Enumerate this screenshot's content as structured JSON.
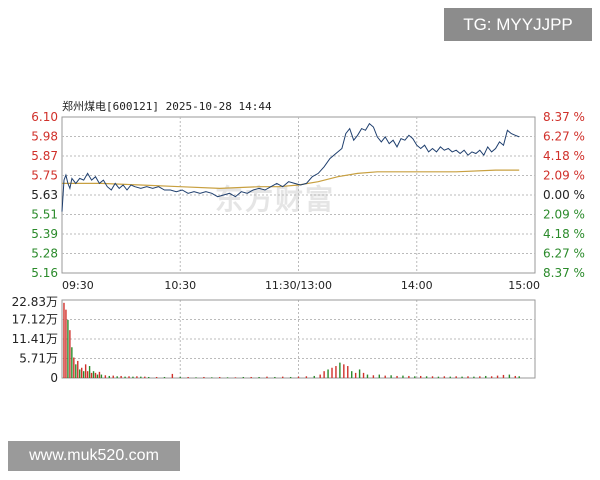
{
  "watermark_top": "TG: MYYJJPP",
  "watermark_bottom": "www.muk520.com",
  "brand_watermark": "东方财富",
  "chart_title": "郑州煤电[600121] 2025-10-28 14:44",
  "colors": {
    "price_line": "#1f3f6e",
    "avg_line": "#c8a040",
    "up": "#d0302a",
    "down": "#2a8a2a",
    "flat": "#222222",
    "grid": "#bbbbbb",
    "volume_up": "#d0302a",
    "volume_down": "#2a8a2a"
  },
  "chart_data": [
    {
      "type": "line",
      "title": "郑州煤电[600121] 2025-10-28 14:44",
      "x_ticks": [
        "09:30",
        "10:30",
        "11:30/13:00",
        "14:00",
        "15:00"
      ],
      "y_left_ticks": [
        "6.10",
        "5.98",
        "5.87",
        "5.75",
        "5.63",
        "5.51",
        "5.39",
        "5.28",
        "5.16"
      ],
      "y_right_ticks": [
        "8.37 %",
        "6.27 %",
        "4.18 %",
        "2.09 %",
        "0.00 %",
        "2.09 %",
        "4.18 %",
        "6.27 %",
        "8.37 %"
      ],
      "ylim": [
        5.16,
        6.1
      ],
      "prev_close": 5.63,
      "x_range": [
        0,
        240
      ],
      "series": [
        {
          "key": "price",
          "points": [
            [
              0,
              5.53
            ],
            [
              1,
              5.72
            ],
            [
              2,
              5.75
            ],
            [
              3,
              5.7
            ],
            [
              4,
              5.67
            ],
            [
              5,
              5.73
            ],
            [
              7,
              5.7
            ],
            [
              9,
              5.73
            ],
            [
              11,
              5.72
            ],
            [
              13,
              5.76
            ],
            [
              15,
              5.72
            ],
            [
              17,
              5.74
            ],
            [
              19,
              5.7
            ],
            [
              21,
              5.72
            ],
            [
              23,
              5.68
            ],
            [
              25,
              5.66
            ],
            [
              27,
              5.7
            ],
            [
              29,
              5.67
            ],
            [
              31,
              5.69
            ],
            [
              33,
              5.66
            ],
            [
              35,
              5.69
            ],
            [
              37,
              5.68
            ],
            [
              40,
              5.67
            ],
            [
              43,
              5.68
            ],
            [
              46,
              5.67
            ],
            [
              49,
              5.68
            ],
            [
              52,
              5.66
            ],
            [
              55,
              5.66
            ],
            [
              58,
              5.65
            ],
            [
              61,
              5.66
            ],
            [
              64,
              5.64
            ],
            [
              67,
              5.65
            ],
            [
              70,
              5.64
            ],
            [
              73,
              5.65
            ],
            [
              76,
              5.64
            ],
            [
              79,
              5.62
            ],
            [
              82,
              5.63
            ],
            [
              85,
              5.64
            ],
            [
              88,
              5.62
            ],
            [
              91,
              5.65
            ],
            [
              94,
              5.64
            ],
            [
              97,
              5.66
            ],
            [
              100,
              5.67
            ],
            [
              103,
              5.66
            ],
            [
              106,
              5.68
            ],
            [
              109,
              5.7
            ],
            [
              112,
              5.68
            ],
            [
              115,
              5.71
            ],
            [
              118,
              5.7
            ],
            [
              121,
              5.69
            ],
            [
              124,
              5.7
            ],
            [
              127,
              5.74
            ],
            [
              130,
              5.76
            ],
            [
              133,
              5.8
            ],
            [
              136,
              5.85
            ],
            [
              139,
              5.88
            ],
            [
              142,
              5.91
            ],
            [
              144,
              6.0
            ],
            [
              146,
              6.03
            ],
            [
              148,
              5.96
            ],
            [
              150,
              5.99
            ],
            [
              152,
              6.03
            ],
            [
              154,
              6.02
            ],
            [
              156,
              6.06
            ],
            [
              158,
              6.04
            ],
            [
              160,
              5.98
            ],
            [
              162,
              5.95
            ],
            [
              164,
              5.98
            ],
            [
              166,
              5.94
            ],
            [
              168,
              5.96
            ],
            [
              170,
              5.92
            ],
            [
              172,
              5.97
            ],
            [
              174,
              5.96
            ],
            [
              176,
              5.99
            ],
            [
              178,
              5.97
            ],
            [
              180,
              5.93
            ],
            [
              182,
              5.91
            ],
            [
              184,
              5.93
            ],
            [
              186,
              5.89
            ],
            [
              188,
              5.91
            ],
            [
              190,
              5.89
            ],
            [
              192,
              5.92
            ],
            [
              194,
              5.9
            ],
            [
              196,
              5.91
            ],
            [
              198,
              5.89
            ],
            [
              200,
              5.9
            ],
            [
              202,
              5.88
            ],
            [
              204,
              5.9
            ],
            [
              206,
              5.87
            ],
            [
              208,
              5.89
            ],
            [
              210,
              5.88
            ],
            [
              212,
              5.9
            ],
            [
              214,
              5.87
            ],
            [
              216,
              5.92
            ],
            [
              218,
              5.89
            ],
            [
              220,
              5.91
            ],
            [
              222,
              5.95
            ],
            [
              224,
              5.93
            ],
            [
              226,
              6.02
            ],
            [
              228,
              6.0
            ],
            [
              230,
              5.99
            ],
            [
              232,
              5.98
            ]
          ]
        },
        {
          "key": "average",
          "points": [
            [
              0,
              5.7
            ],
            [
              20,
              5.7
            ],
            [
              40,
              5.69
            ],
            [
              60,
              5.68
            ],
            [
              80,
              5.67
            ],
            [
              100,
              5.68
            ],
            [
              110,
              5.68
            ],
            [
              120,
              5.69
            ],
            [
              130,
              5.71
            ],
            [
              140,
              5.74
            ],
            [
              150,
              5.76
            ],
            [
              160,
              5.77
            ],
            [
              180,
              5.77
            ],
            [
              200,
              5.77
            ],
            [
              220,
              5.78
            ],
            [
              232,
              5.78
            ]
          ]
        }
      ]
    },
    {
      "type": "bar",
      "title": "",
      "y_ticks": [
        "22.83万",
        "17.12万",
        "11.41万",
        "5.71万",
        "0"
      ],
      "ylim": [
        0,
        22.83
      ],
      "unit": "万",
      "bars": [
        {
          "x": 1,
          "value": 22.0,
          "dir": "up"
        },
        {
          "x": 2,
          "value": 20.0,
          "dir": "up"
        },
        {
          "x": 3,
          "value": 17.0,
          "dir": "down"
        },
        {
          "x": 4,
          "value": 14.0,
          "dir": "up"
        },
        {
          "x": 5,
          "value": 9.0,
          "dir": "down"
        },
        {
          "x": 6,
          "value": 6.0,
          "dir": "up"
        },
        {
          "x": 7,
          "value": 4.0,
          "dir": "down"
        },
        {
          "x": 8,
          "value": 5.0,
          "dir": "up"
        },
        {
          "x": 9,
          "value": 2.5,
          "dir": "down"
        },
        {
          "x": 10,
          "value": 3.0,
          "dir": "up"
        },
        {
          "x": 11,
          "value": 2.0,
          "dir": "down"
        },
        {
          "x": 12,
          "value": 4.0,
          "dir": "up"
        },
        {
          "x": 13,
          "value": 2.0,
          "dir": "up"
        },
        {
          "x": 14,
          "value": 3.5,
          "dir": "down"
        },
        {
          "x": 15,
          "value": 1.5,
          "dir": "up"
        },
        {
          "x": 16,
          "value": 2.0,
          "dir": "down"
        },
        {
          "x": 17,
          "value": 1.5,
          "dir": "up"
        },
        {
          "x": 18,
          "value": 1.0,
          "dir": "down"
        },
        {
          "x": 19,
          "value": 1.8,
          "dir": "up"
        },
        {
          "x": 20,
          "value": 1.0,
          "dir": "down"
        },
        {
          "x": 22,
          "value": 0.8,
          "dir": "up"
        },
        {
          "x": 24,
          "value": 0.6,
          "dir": "down"
        },
        {
          "x": 26,
          "value": 0.7,
          "dir": "up"
        },
        {
          "x": 28,
          "value": 0.5,
          "dir": "down"
        },
        {
          "x": 30,
          "value": 0.6,
          "dir": "up"
        },
        {
          "x": 32,
          "value": 0.4,
          "dir": "down"
        },
        {
          "x": 34,
          "value": 0.5,
          "dir": "up"
        },
        {
          "x": 36,
          "value": 0.4,
          "dir": "down"
        },
        {
          "x": 38,
          "value": 0.5,
          "dir": "up"
        },
        {
          "x": 40,
          "value": 0.4,
          "dir": "down"
        },
        {
          "x": 42,
          "value": 0.4,
          "dir": "up"
        },
        {
          "x": 44,
          "value": 0.3,
          "dir": "down"
        },
        {
          "x": 48,
          "value": 0.3,
          "dir": "up"
        },
        {
          "x": 52,
          "value": 0.3,
          "dir": "down"
        },
        {
          "x": 56,
          "value": 1.2,
          "dir": "up"
        },
        {
          "x": 60,
          "value": 0.3,
          "dir": "down"
        },
        {
          "x": 64,
          "value": 0.3,
          "dir": "up"
        },
        {
          "x": 68,
          "value": 0.2,
          "dir": "down"
        },
        {
          "x": 72,
          "value": 0.3,
          "dir": "up"
        },
        {
          "x": 76,
          "value": 0.2,
          "dir": "down"
        },
        {
          "x": 80,
          "value": 0.3,
          "dir": "up"
        },
        {
          "x": 84,
          "value": 0.2,
          "dir": "down"
        },
        {
          "x": 88,
          "value": 0.2,
          "dir": "up"
        },
        {
          "x": 92,
          "value": 0.3,
          "dir": "down"
        },
        {
          "x": 96,
          "value": 0.3,
          "dir": "up"
        },
        {
          "x": 100,
          "value": 0.3,
          "dir": "down"
        },
        {
          "x": 104,
          "value": 0.4,
          "dir": "up"
        },
        {
          "x": 108,
          "value": 0.3,
          "dir": "down"
        },
        {
          "x": 112,
          "value": 0.4,
          "dir": "up"
        },
        {
          "x": 116,
          "value": 0.3,
          "dir": "down"
        },
        {
          "x": 120,
          "value": 0.4,
          "dir": "up"
        },
        {
          "x": 124,
          "value": 0.5,
          "dir": "up"
        },
        {
          "x": 128,
          "value": 0.6,
          "dir": "down"
        },
        {
          "x": 131,
          "value": 1.0,
          "dir": "up"
        },
        {
          "x": 133,
          "value": 2.0,
          "dir": "up"
        },
        {
          "x": 135,
          "value": 2.5,
          "dir": "down"
        },
        {
          "x": 137,
          "value": 3.0,
          "dir": "up"
        },
        {
          "x": 139,
          "value": 3.5,
          "dir": "up"
        },
        {
          "x": 141,
          "value": 4.5,
          "dir": "down"
        },
        {
          "x": 143,
          "value": 4.0,
          "dir": "up"
        },
        {
          "x": 145,
          "value": 3.5,
          "dir": "up"
        },
        {
          "x": 147,
          "value": 2.0,
          "dir": "down"
        },
        {
          "x": 149,
          "value": 1.5,
          "dir": "up"
        },
        {
          "x": 151,
          "value": 2.5,
          "dir": "down"
        },
        {
          "x": 153,
          "value": 1.5,
          "dir": "up"
        },
        {
          "x": 155,
          "value": 1.0,
          "dir": "down"
        },
        {
          "x": 158,
          "value": 0.8,
          "dir": "up"
        },
        {
          "x": 161,
          "value": 1.0,
          "dir": "down"
        },
        {
          "x": 164,
          "value": 0.7,
          "dir": "up"
        },
        {
          "x": 167,
          "value": 0.8,
          "dir": "down"
        },
        {
          "x": 170,
          "value": 0.6,
          "dir": "up"
        },
        {
          "x": 173,
          "value": 0.7,
          "dir": "down"
        },
        {
          "x": 176,
          "value": 0.6,
          "dir": "up"
        },
        {
          "x": 179,
          "value": 0.5,
          "dir": "down"
        },
        {
          "x": 182,
          "value": 0.6,
          "dir": "up"
        },
        {
          "x": 185,
          "value": 0.5,
          "dir": "down"
        },
        {
          "x": 188,
          "value": 0.5,
          "dir": "up"
        },
        {
          "x": 191,
          "value": 0.4,
          "dir": "down"
        },
        {
          "x": 194,
          "value": 0.5,
          "dir": "up"
        },
        {
          "x": 197,
          "value": 0.4,
          "dir": "down"
        },
        {
          "x": 200,
          "value": 0.5,
          "dir": "up"
        },
        {
          "x": 203,
          "value": 0.4,
          "dir": "down"
        },
        {
          "x": 206,
          "value": 0.5,
          "dir": "up"
        },
        {
          "x": 209,
          "value": 0.4,
          "dir": "down"
        },
        {
          "x": 212,
          "value": 0.5,
          "dir": "up"
        },
        {
          "x": 215,
          "value": 0.6,
          "dir": "down"
        },
        {
          "x": 218,
          "value": 0.5,
          "dir": "up"
        },
        {
          "x": 221,
          "value": 0.7,
          "dir": "up"
        },
        {
          "x": 224,
          "value": 0.9,
          "dir": "up"
        },
        {
          "x": 227,
          "value": 1.0,
          "dir": "down"
        },
        {
          "x": 230,
          "value": 0.6,
          "dir": "up"
        },
        {
          "x": 232,
          "value": 0.5,
          "dir": "down"
        }
      ]
    }
  ]
}
